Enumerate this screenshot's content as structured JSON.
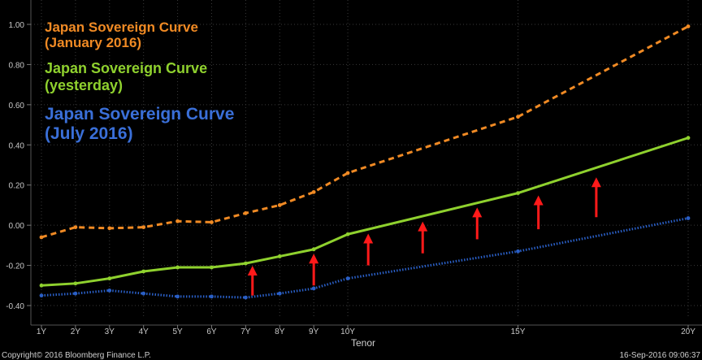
{
  "chart_data": {
    "type": "line",
    "xlabel": "Tenor",
    "ylabel": "",
    "x": [
      "1Y",
      "2Y",
      "3Y",
      "4Y",
      "5Y",
      "6Y",
      "7Y",
      "8Y",
      "9Y",
      "10Y",
      "15Y",
      "20Y"
    ],
    "x_positions_years": [
      1,
      2,
      3,
      4,
      5,
      6,
      7,
      8,
      9,
      10,
      15,
      20
    ],
    "ylim": [
      -0.4,
      1.0
    ],
    "yticks": [
      "1.00",
      "0.80",
      "0.60",
      "0.40",
      "0.20",
      "0.00",
      "-0.20",
      "-0.40"
    ],
    "ytick_values": [
      1.0,
      0.8,
      0.6,
      0.4,
      0.2,
      0.0,
      -0.2,
      -0.4
    ],
    "grid": true,
    "series": [
      {
        "name": "Japan Sovereign Curve (January 2016)",
        "color": "#f08a24",
        "style": "dashed",
        "values": [
          -0.06,
          -0.01,
          -0.015,
          -0.01,
          0.02,
          0.015,
          0.06,
          0.1,
          0.165,
          0.26,
          0.54,
          0.99
        ]
      },
      {
        "name": "Japan Sovereign Curve (yesterday)",
        "color": "#8fd12e",
        "style": "solid",
        "values": [
          -0.3,
          -0.29,
          -0.265,
          -0.23,
          -0.21,
          -0.21,
          -0.19,
          -0.155,
          -0.12,
          -0.045,
          0.16,
          0.435
        ]
      },
      {
        "name": "Japan Sovereign Curve (July 2016)",
        "color": "#2a5fc6",
        "style": "dotted",
        "values": [
          -0.35,
          -0.34,
          -0.325,
          -0.34,
          -0.355,
          -0.355,
          -0.36,
          -0.34,
          -0.315,
          -0.265,
          -0.13,
          0.035
        ]
      }
    ],
    "annotations": {
      "arrows_color": "#ff1a1a",
      "arrow_x_years": [
        7.2,
        9.0,
        10.6,
        12.2,
        13.8,
        15.6,
        17.3
      ],
      "arrow_ranges": [
        [
          -0.35,
          -0.21
        ],
        [
          -0.3,
          -0.15
        ],
        [
          -0.2,
          -0.05
        ],
        [
          -0.14,
          0.01
        ],
        [
          -0.07,
          0.08
        ],
        [
          -0.02,
          0.14
        ],
        [
          0.04,
          0.23
        ]
      ]
    }
  },
  "legend": {
    "january_line1": "Japan Sovereign Curve",
    "january_line2": "(January 2016)",
    "yesterday_line1": "Japan Sovereign Curve",
    "yesterday_line2": "(yesterday)",
    "july_line1": "Japan Sovereign Curve",
    "july_line2": "(July 2016)"
  },
  "footer": {
    "copyright": "Copyright© 2016 Bloomberg Finance L.P.",
    "timestamp": "16-Sep-2016 09:06:37"
  }
}
